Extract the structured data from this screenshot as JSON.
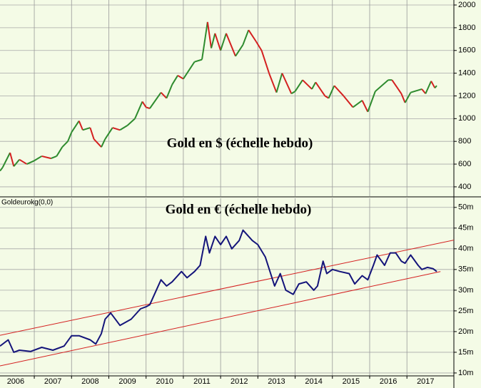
{
  "chart_data": [
    {
      "type": "updown-line",
      "title": "Gold en $ (échelle hebdo)",
      "x": [
        2006.08,
        2006.15,
        2006.35,
        2006.45,
        2006.6,
        2006.8,
        2007.0,
        2007.2,
        2007.45,
        2007.6,
        2007.75,
        2007.9,
        2008.0,
        2008.2,
        2008.3,
        2008.5,
        2008.6,
        2008.8,
        2008.9,
        2009.1,
        2009.3,
        2009.5,
        2009.7,
        2009.9,
        2010.0,
        2010.1,
        2010.4,
        2010.55,
        2010.7,
        2010.85,
        2011.0,
        2011.3,
        2011.5,
        2011.65,
        2011.75,
        2011.85,
        2012.0,
        2012.15,
        2012.4,
        2012.6,
        2012.75,
        2012.95,
        2013.1,
        2013.3,
        2013.5,
        2013.65,
        2013.9,
        2014.0,
        2014.2,
        2014.45,
        2014.55,
        2014.8,
        2014.9,
        2015.05,
        2015.3,
        2015.55,
        2015.8,
        2015.95,
        2016.15,
        2016.5,
        2016.6,
        2016.85,
        2016.95,
        2017.1,
        2017.4,
        2017.5,
        2017.65,
        2017.75,
        2017.8
      ],
      "values": [
        540,
        570,
        700,
        580,
        640,
        600,
        630,
        670,
        650,
        670,
        750,
        800,
        880,
        980,
        900,
        920,
        820,
        750,
        820,
        920,
        900,
        940,
        1000,
        1150,
        1100,
        1090,
        1230,
        1180,
        1300,
        1380,
        1350,
        1500,
        1520,
        1850,
        1620,
        1750,
        1600,
        1750,
        1550,
        1650,
        1780,
        1680,
        1600,
        1400,
        1230,
        1400,
        1220,
        1240,
        1340,
        1260,
        1320,
        1200,
        1180,
        1290,
        1200,
        1100,
        1160,
        1060,
        1240,
        1340,
        1340,
        1220,
        1140,
        1230,
        1260,
        1220,
        1330,
        1270,
        1290
      ],
      "up_color": "#2e8b2e",
      "down_color": "#d42020",
      "xlim": [
        2006.08,
        2018.26
      ],
      "ylim": [
        318,
        2044
      ],
      "yticks": [
        400,
        600,
        800,
        1000,
        1200,
        1400,
        1600,
        1800,
        2000
      ]
    },
    {
      "type": "line",
      "title": "Gold en € (échelle hebdo)",
      "label": "Goldeurokg(0,0)",
      "x": [
        2006.08,
        2006.3,
        2006.45,
        2006.6,
        2006.9,
        2007.2,
        2007.5,
        2007.8,
        2008.0,
        2008.2,
        2008.5,
        2008.65,
        2008.8,
        2008.9,
        2009.05,
        2009.3,
        2009.6,
        2009.85,
        2010.0,
        2010.1,
        2010.4,
        2010.55,
        2010.7,
        2010.95,
        2011.1,
        2011.3,
        2011.45,
        2011.6,
        2011.7,
        2011.85,
        2012.0,
        2012.15,
        2012.3,
        2012.5,
        2012.6,
        2012.85,
        2013.0,
        2013.2,
        2013.45,
        2013.6,
        2013.75,
        2013.95,
        2014.1,
        2014.3,
        2014.5,
        2014.6,
        2014.75,
        2014.85,
        2015.0,
        2015.2,
        2015.45,
        2015.6,
        2015.8,
        2015.95,
        2016.1,
        2016.2,
        2016.4,
        2016.55,
        2016.7,
        2016.85,
        2016.95,
        2017.1,
        2017.3,
        2017.4,
        2017.55,
        2017.7,
        2017.8
      ],
      "values": [
        16.5,
        18,
        15,
        15.5,
        15.2,
        16.2,
        15.5,
        16.5,
        19,
        19,
        18,
        17,
        19.5,
        23,
        24.5,
        21.5,
        23,
        25.5,
        26,
        26.5,
        32.5,
        31,
        32,
        34.5,
        33,
        34.5,
        36,
        43,
        39,
        43,
        41,
        43,
        40,
        42,
        44.5,
        42,
        41,
        38,
        31,
        34,
        30,
        29,
        31.5,
        32,
        30,
        31,
        37,
        34,
        35,
        34.5,
        34,
        31.5,
        33.5,
        32.5,
        36,
        38.5,
        36,
        39,
        39,
        37,
        36.5,
        38.5,
        36,
        35,
        35.5,
        35.2,
        34.5
      ],
      "color": "#14147a",
      "channels": [
        {
          "x": [
            2006.08,
            2017.9
          ],
          "values": [
            11.7,
            34.5
          ],
          "color": "#d42020"
        },
        {
          "x": [
            2006.08,
            2018.26
          ],
          "values": [
            19.1,
            42.1
          ],
          "color": "#d42020"
        }
      ],
      "xlim": [
        2006.08,
        2018.26
      ],
      "ylim": [
        9.3,
        52.2
      ],
      "xticks": [
        2006,
        2007,
        2008,
        2009,
        2010,
        2011,
        2012,
        2013,
        2014,
        2015,
        2016,
        2017
      ],
      "yticks": [
        {
          "value": 10,
          "label": "10m"
        },
        {
          "value": 15,
          "label": "15m"
        },
        {
          "value": 20,
          "label": "20m"
        },
        {
          "value": 25,
          "label": "25m"
        },
        {
          "value": 30,
          "label": "30m"
        },
        {
          "value": 35,
          "label": "35m"
        },
        {
          "value": 40,
          "label": "40m"
        },
        {
          "value": 45,
          "label": "45m"
        },
        {
          "value": 50,
          "label": "50m"
        }
      ]
    }
  ]
}
